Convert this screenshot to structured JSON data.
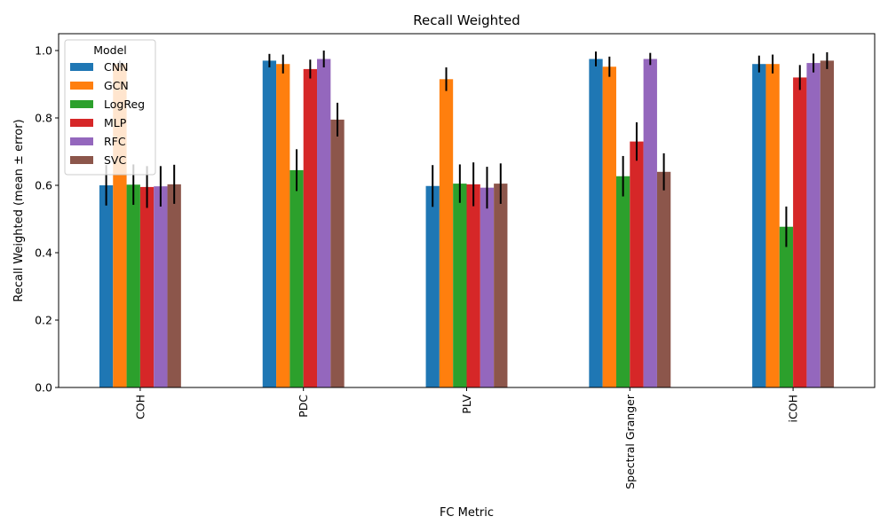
{
  "chart_data": {
    "type": "bar",
    "title": "Recall Weighted",
    "xlabel": "FC Metric",
    "ylabel": "Recall Weighted (mean ± error)",
    "ylim": [
      0,
      1.05
    ],
    "yticks": [
      0.0,
      0.2,
      0.4,
      0.6,
      0.8,
      1.0
    ],
    "ytick_labels": [
      "0.0",
      "0.2",
      "0.4",
      "0.6",
      "0.8",
      "1.0"
    ],
    "categories": [
      "COH",
      "PDC",
      "PLV",
      "Spectral Granger",
      "iCOH"
    ],
    "grid": false,
    "legend": {
      "title": "Model",
      "placement": "top-left"
    },
    "series": [
      {
        "name": "CNN",
        "color": "#1f77b4",
        "values": [
          0.6,
          0.97,
          0.598,
          0.975,
          0.96
        ],
        "errors": [
          0.06,
          0.02,
          0.062,
          0.022,
          0.025
        ]
      },
      {
        "name": "GCN",
        "color": "#ff7f0e",
        "values": [
          0.96,
          0.96,
          0.915,
          0.952,
          0.96
        ],
        "errors": [
          0.01,
          0.028,
          0.035,
          0.03,
          0.028
        ]
      },
      {
        "name": "LogReg",
        "color": "#2ca02c",
        "values": [
          0.602,
          0.645,
          0.605,
          0.627,
          0.477
        ],
        "errors": [
          0.06,
          0.062,
          0.057,
          0.06,
          0.06
        ]
      },
      {
        "name": "MLP",
        "color": "#d62728",
        "values": [
          0.595,
          0.945,
          0.603,
          0.73,
          0.92
        ],
        "errors": [
          0.062,
          0.028,
          0.065,
          0.057,
          0.037
        ]
      },
      {
        "name": "RFC",
        "color": "#9467bd",
        "values": [
          0.597,
          0.975,
          0.593,
          0.975,
          0.963
        ],
        "errors": [
          0.06,
          0.025,
          0.062,
          0.018,
          0.028
        ]
      },
      {
        "name": "SVC",
        "color": "#8c564b",
        "values": [
          0.603,
          0.795,
          0.605,
          0.64,
          0.97
        ],
        "errors": [
          0.058,
          0.05,
          0.06,
          0.055,
          0.025
        ]
      }
    ]
  }
}
